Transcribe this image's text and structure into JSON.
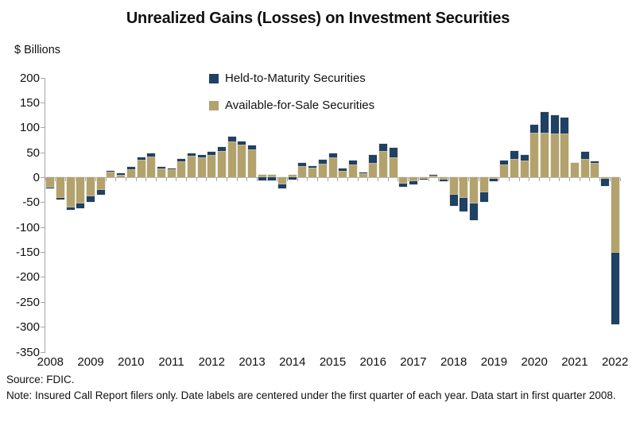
{
  "title": "Unrealized Gains (Losses) on Investment Securities",
  "y_axis_title": "$ Billions",
  "legend": [
    {
      "label": "Held-to-Maturity Securities",
      "color": "#1e4164"
    },
    {
      "label": "Available-for-Sale Securities",
      "color": "#b3a26c"
    }
  ],
  "footer": {
    "source": "Source: FDIC.",
    "note": "Note: Insured Call Report filers only. Date labels are centered under the first quarter of each year. Data start in first quarter 2008."
  },
  "chart_data": {
    "type": "bar",
    "stacked": true,
    "unit": "$ Billions",
    "title": "Unrealized Gains (Losses) on Investment Securities",
    "ylabel": "$ Billions",
    "xlabel": "",
    "ylim": [
      -350,
      200
    ],
    "y_ticks": [
      200,
      150,
      100,
      50,
      0,
      -50,
      -100,
      -150,
      -200,
      -250,
      -300,
      -350
    ],
    "gridlines": "none",
    "legend_position": "top-center",
    "x_tick_labels": [
      "2008",
      "2009",
      "2010",
      "2011",
      "2012",
      "2013",
      "2014",
      "2015",
      "2016",
      "2017",
      "2018",
      "2019",
      "2020",
      "2021",
      "2022"
    ],
    "x": [
      "2008 Q1",
      "2008 Q2",
      "2008 Q3",
      "2008 Q4",
      "2009 Q1",
      "2009 Q2",
      "2009 Q3",
      "2009 Q4",
      "2010 Q1",
      "2010 Q2",
      "2010 Q3",
      "2010 Q4",
      "2011 Q1",
      "2011 Q2",
      "2011 Q3",
      "2011 Q4",
      "2012 Q1",
      "2012 Q2",
      "2012 Q3",
      "2012 Q4",
      "2013 Q1",
      "2013 Q2",
      "2013 Q3",
      "2013 Q4",
      "2014 Q1",
      "2014 Q2",
      "2014 Q3",
      "2014 Q4",
      "2015 Q1",
      "2015 Q2",
      "2015 Q3",
      "2015 Q4",
      "2016 Q1",
      "2016 Q2",
      "2016 Q3",
      "2016 Q4",
      "2017 Q1",
      "2017 Q2",
      "2017 Q3",
      "2017 Q4",
      "2018 Q1",
      "2018 Q2",
      "2018 Q3",
      "2018 Q4",
      "2019 Q1",
      "2019 Q2",
      "2019 Q3",
      "2019 Q4",
      "2020 Q1",
      "2020 Q2",
      "2020 Q3",
      "2020 Q4",
      "2021 Q1",
      "2021 Q2",
      "2021 Q3",
      "2021 Q4",
      "2022 Q1"
    ],
    "stack_order_note": "Available-for-Sale stacks first from zero, Held-to-Maturity stacks second",
    "series": [
      {
        "name": "Available-for-Sale Securities",
        "color": "#b3a26c",
        "values": [
          -20,
          -41,
          -60,
          -52,
          -37,
          -24,
          12,
          6,
          17,
          36,
          42,
          19,
          17,
          33,
          43,
          40,
          45,
          54,
          73,
          66,
          57,
          5,
          5,
          -13,
          5,
          23,
          20,
          28,
          40,
          14,
          27,
          9,
          30,
          53,
          40,
          -12,
          -7,
          -3,
          5,
          -4,
          -34,
          -40,
          -52,
          -30,
          -2,
          26,
          37,
          34,
          90,
          90,
          88,
          88,
          29,
          37,
          30,
          -2,
          -151
        ]
      },
      {
        "name": "Held-to-Maturity Securities",
        "color": "#1e4164",
        "values": [
          -2,
          -3,
          -4,
          -10,
          -12,
          -11,
          1,
          2,
          4,
          4,
          6,
          3,
          2,
          4,
          5,
          5,
          6,
          7,
          9,
          7,
          7,
          -6,
          -5,
          -9,
          -4,
          6,
          3,
          8,
          9,
          4,
          7,
          2,
          15,
          15,
          20,
          -6,
          -6,
          -1,
          1,
          -4,
          -22,
          -28,
          -33,
          -19,
          -5,
          9,
          17,
          11,
          16,
          41,
          37,
          32,
          0,
          15,
          2,
          -15,
          -144
        ]
      }
    ]
  }
}
